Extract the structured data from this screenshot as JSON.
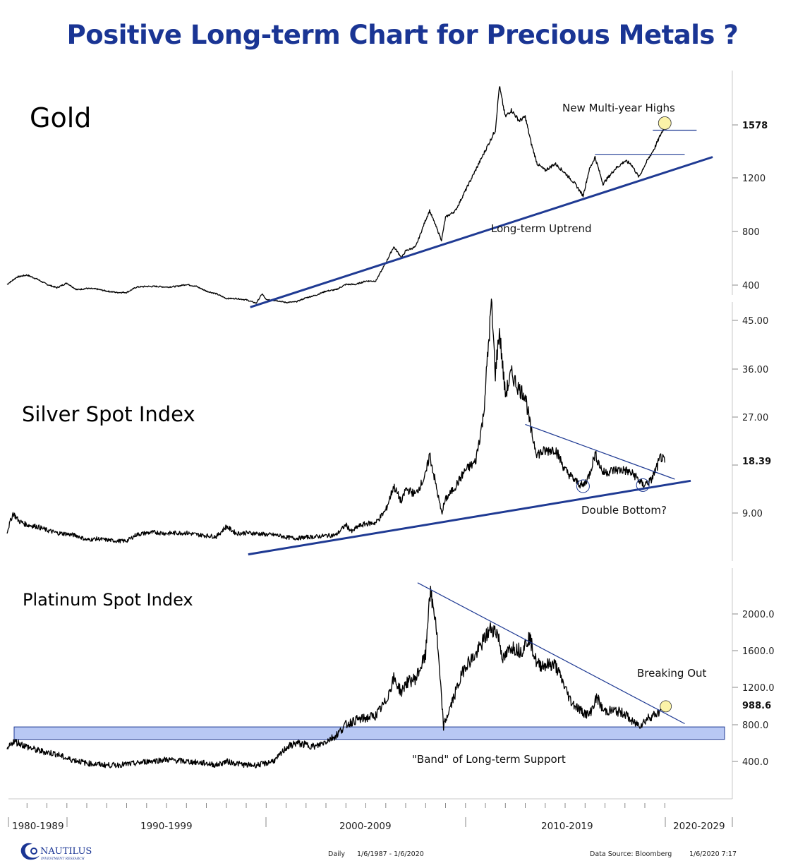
{
  "title": "Positive Long-term Chart for Precious Metals ?",
  "colors": {
    "title": "#1a3594",
    "trendline": "#1f3a93",
    "price_line": "#000000",
    "highlight_circle": "#fbf3a8",
    "support_band": "#b8c8f4",
    "axis": "#c8c8c8"
  },
  "chart_data": [
    {
      "type": "line",
      "title": "Gold",
      "ylabel": "",
      "yticks": [
        "400",
        "800",
        "1200"
      ],
      "last_value_label": "1578",
      "last_value": 1578,
      "ylim": [
        300,
        1950
      ],
      "x": [
        1987.0,
        1987.5,
        1988.0,
        1988.5,
        1989.0,
        1989.5,
        1990.0,
        1990.5,
        1991.0,
        1991.5,
        1992.0,
        1992.5,
        1993.0,
        1993.5,
        1994.0,
        1994.5,
        1995.0,
        1995.5,
        1996.0,
        1996.5,
        1997.0,
        1997.5,
        1998.0,
        1998.5,
        1999.0,
        1999.5,
        1999.8,
        2000.0,
        2000.5,
        2001.0,
        2001.5,
        2002.0,
        2002.5,
        2003.0,
        2003.5,
        2004.0,
        2004.5,
        2005.0,
        2005.5,
        2006.0,
        2006.4,
        2006.8,
        2007.0,
        2007.5,
        2008.0,
        2008.2,
        2008.8,
        2009.0,
        2009.5,
        2010.0,
        2010.5,
        2011.0,
        2011.5,
        2011.7,
        2012.0,
        2012.3,
        2012.7,
        2013.0,
        2013.3,
        2013.6,
        2014.0,
        2014.5,
        2015.0,
        2015.5,
        2015.9,
        2016.2,
        2016.5,
        2016.9,
        2017.5,
        2018.0,
        2018.3,
        2018.7,
        2019.0,
        2019.5,
        2019.8,
        2020.0
      ],
      "values": [
        400,
        455,
        470,
        440,
        400,
        375,
        410,
        360,
        370,
        365,
        350,
        340,
        340,
        380,
        385,
        385,
        380,
        385,
        400,
        385,
        350,
        330,
        295,
        295,
        285,
        260,
        330,
        285,
        280,
        265,
        270,
        300,
        320,
        350,
        360,
        400,
        400,
        425,
        425,
        560,
        680,
        600,
        650,
        680,
        880,
        950,
        730,
        900,
        950,
        1100,
        1250,
        1400,
        1550,
        1880,
        1650,
        1700,
        1620,
        1650,
        1450,
        1300,
        1250,
        1300,
        1230,
        1150,
        1060,
        1250,
        1350,
        1150,
        1260,
        1320,
        1300,
        1200,
        1290,
        1420,
        1520,
        1578
      ],
      "annotations": [
        {
          "text": "New Multi-year Highs"
        },
        {
          "text": "Long-term Uptrend"
        }
      ],
      "trendlines": [
        {
          "name": "long-term-uptrend",
          "from": [
            1999.2,
            230
          ],
          "to": [
            2022.4,
            1350
          ]
        },
        {
          "name": "resistance-2016",
          "from": [
            2016.5,
            1370
          ],
          "to": [
            2021.0,
            1370
          ]
        },
        {
          "name": "resistance-high",
          "from": [
            2019.4,
            1550
          ],
          "to": [
            2021.6,
            1550
          ]
        }
      ]
    },
    {
      "type": "line",
      "title": "Silver Spot Index",
      "yticks": [
        "9.00",
        "27.00",
        "36.00",
        "45.00"
      ],
      "last_value_label": "18.39",
      "last_value": 18.39,
      "ylim": [
        3,
        48
      ],
      "x": [
        1987.0,
        1987.3,
        1987.6,
        1988.0,
        1988.5,
        1989.0,
        1989.5,
        1990.0,
        1990.5,
        1991.0,
        1991.5,
        1992.0,
        1992.5,
        1993.0,
        1993.5,
        1994.0,
        1994.5,
        1995.0,
        1995.5,
        1996.0,
        1996.5,
        1997.0,
        1997.5,
        1998.0,
        1998.5,
        1999.0,
        1999.5,
        2000.0,
        2000.5,
        2001.0,
        2001.5,
        2002.0,
        2002.5,
        2003.0,
        2003.5,
        2004.0,
        2004.3,
        2004.6,
        2005.0,
        2005.5,
        2006.0,
        2006.4,
        2006.8,
        2007.0,
        2007.5,
        2008.0,
        2008.2,
        2008.8,
        2009.0,
        2009.5,
        2010.0,
        2010.5,
        2010.9,
        2011.3,
        2011.5,
        2011.7,
        2012.0,
        2012.3,
        2012.7,
        2013.0,
        2013.3,
        2013.6,
        2014.0,
        2014.5,
        2015.0,
        2015.5,
        2015.9,
        2016.2,
        2016.5,
        2016.9,
        2017.5,
        2018.0,
        2018.5,
        2018.9,
        2019.3,
        2019.6,
        2019.8,
        2020.0
      ],
      "values": [
        5.5,
        9.0,
        7.5,
        6.8,
        6.5,
        5.8,
        5.3,
        5.1,
        4.8,
        4.0,
        4.2,
        4.0,
        3.8,
        3.8,
        5.0,
        5.3,
        5.4,
        5.2,
        5.3,
        5.3,
        5.0,
        4.8,
        4.6,
        6.5,
        5.2,
        5.3,
        5.2,
        5.0,
        4.9,
        4.5,
        4.3,
        4.5,
        4.6,
        4.8,
        4.9,
        6.8,
        5.5,
        6.5,
        7.0,
        7.2,
        9.5,
        14.0,
        11.0,
        13.5,
        12.5,
        16.0,
        20.0,
        9.0,
        11.5,
        14.0,
        17.0,
        18.5,
        27.0,
        48.0,
        35.0,
        43.0,
        31.0,
        35.0,
        32.0,
        31.0,
        24.0,
        20.0,
        20.5,
        21.0,
        17.0,
        15.0,
        14.0,
        16.0,
        20.0,
        16.5,
        17.0,
        17.0,
        16.0,
        14.2,
        15.0,
        17.5,
        19.5,
        18.39
      ],
      "annotations": [
        {
          "text": "Double Bottom?"
        }
      ],
      "trendlines": [
        {
          "name": "long-term-uptrend",
          "from": [
            1999.1,
            1.3
          ],
          "to": [
            2021.3,
            15.0
          ]
        },
        {
          "name": "descending-resistance",
          "from": [
            2013.0,
            25.5
          ],
          "to": [
            2020.5,
            15.3
          ]
        }
      ]
    },
    {
      "type": "line",
      "title": "Platinum Spot Index",
      "yticks": [
        "400.0",
        "800.0",
        "1200.0",
        "1600.0",
        "2000.0"
      ],
      "last_value_label": "988.6",
      "last_value": 988.6,
      "ylim": [
        200,
        2300
      ],
      "x": [
        1987.0,
        1987.3,
        1987.6,
        1988.0,
        1988.5,
        1989.0,
        1989.5,
        1990.0,
        1990.5,
        1991.0,
        1991.5,
        1992.0,
        1992.5,
        1993.0,
        1993.5,
        1994.0,
        1994.5,
        1995.0,
        1995.5,
        1996.0,
        1996.5,
        1997.0,
        1997.5,
        1998.0,
        1998.5,
        1999.0,
        1999.5,
        2000.0,
        2000.5,
        2001.0,
        2001.5,
        2002.0,
        2002.5,
        2003.0,
        2003.5,
        2004.0,
        2004.5,
        2005.0,
        2005.5,
        2006.0,
        2006.4,
        2006.8,
        2007.0,
        2007.5,
        2008.0,
        2008.2,
        2008.5,
        2008.9,
        2009.5,
        2010.0,
        2010.5,
        2011.0,
        2011.3,
        2011.6,
        2011.9,
        2012.3,
        2012.8,
        2013.2,
        2013.6,
        2014.0,
        2014.5,
        2014.9,
        2015.3,
        2015.8,
        2016.2,
        2016.6,
        2016.9,
        2017.5,
        2018.0,
        2018.4,
        2018.8,
        2019.2,
        2019.6,
        2020.0
      ],
      "values": [
        520,
        620,
        600,
        560,
        520,
        500,
        480,
        430,
        410,
        380,
        370,
        360,
        360,
        370,
        380,
        400,
        410,
        420,
        410,
        400,
        390,
        380,
        360,
        400,
        380,
        360,
        360,
        380,
        420,
        550,
        600,
        580,
        560,
        620,
        680,
        800,
        850,
        870,
        900,
        1050,
        1300,
        1150,
        1250,
        1300,
        1550,
        2250,
        1950,
        780,
        1150,
        1450,
        1550,
        1750,
        1850,
        1800,
        1500,
        1650,
        1600,
        1750,
        1450,
        1450,
        1450,
        1250,
        1050,
        950,
        900,
        1100,
        950,
        950,
        920,
        820,
        800,
        880,
        920,
        988.6
      ],
      "annotations": [
        {
          "text": "Breaking Out"
        },
        {
          "text": "\"Band\" of Long-term Support"
        }
      ],
      "support_band": [
        640,
        775
      ],
      "trendlines": [
        {
          "name": "descending-resistance",
          "from": [
            2007.6,
            2340
          ],
          "to": [
            2021.0,
            810
          ]
        }
      ]
    }
  ],
  "xaxis": {
    "labels": [
      "1980-1989",
      "1990-1999",
      "2000-2009",
      "2010-2019",
      "2020-2029"
    ]
  },
  "footer": {
    "logo_name": "NAUTILUS",
    "logo_sub": "INVESTMENT RESEARCH",
    "frequency": "Daily",
    "range": "1/6/1987 - 1/6/2020",
    "source": "Data Source: Bloomberg",
    "timestamp": "1/6/2020 7:17"
  }
}
